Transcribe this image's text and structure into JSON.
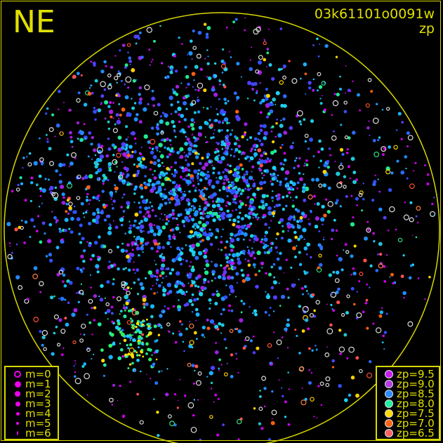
{
  "orientation_label": "NE",
  "image_id": "03k61101o0091w",
  "plot_quantity": "zp",
  "colors": {
    "frame": "#d8d800",
    "horizon": "#d8d800",
    "text": "#e0e000",
    "magnitude_symbol": "#ee00ee"
  },
  "magnitude_legend": [
    {
      "label": "m=0",
      "style": "ring"
    },
    {
      "label": "m=1",
      "style": "filled"
    },
    {
      "label": "m=2",
      "style": "filled"
    },
    {
      "label": "m=3",
      "style": "filled"
    },
    {
      "label": "m=4",
      "style": "filled"
    },
    {
      "label": "m=5",
      "style": "filled"
    },
    {
      "label": "m=6",
      "style": "filled"
    }
  ],
  "zp_legend": [
    {
      "label": "zp=9.5",
      "color": "#c81cf0"
    },
    {
      "label": "zp=9.0",
      "color": "#b43ce6"
    },
    {
      "label": "zp=8.5",
      "color": "#2a8cff"
    },
    {
      "label": "zp=8.0",
      "color": "#1ef0a0"
    },
    {
      "label": "zp=7.5",
      "color": "#ffdc00"
    },
    {
      "label": "zp=7.0",
      "color": "#ff6414"
    },
    {
      "label": "zp=6.5",
      "color": "#ff6464"
    }
  ]
}
